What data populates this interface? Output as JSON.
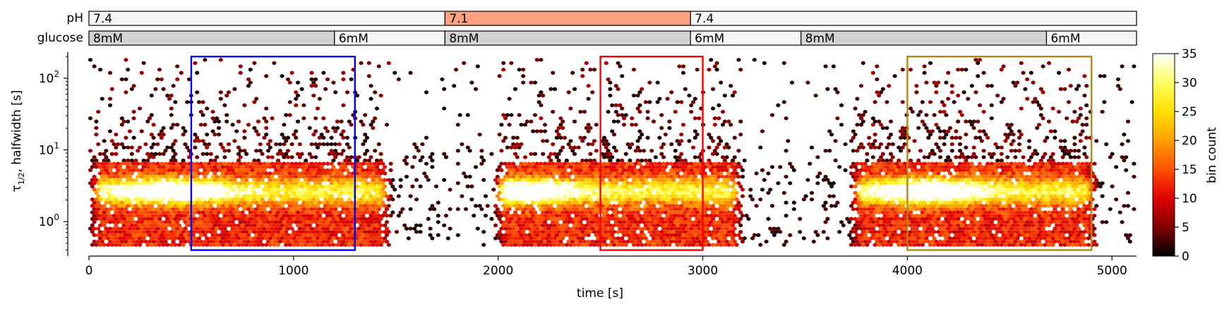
{
  "chart_data": {
    "type": "heatmap",
    "subtype": "hexbin",
    "xlabel": "time [s]",
    "ylabel": "τ1/2, halfwidth [s]",
    "ylabel_main": "τ",
    "ylabel_sub": "1/2",
    "ylabel_rest": ", halfwidth [s]",
    "xlim": [
      0,
      5120
    ],
    "ylim": [
      0.33,
      220
    ],
    "yscale": "log",
    "x_ticks": [
      0,
      1000,
      2000,
      3000,
      4000,
      5000
    ],
    "x_tick_labels": [
      "0",
      "1000",
      "2000",
      "3000",
      "4000",
      "5000"
    ],
    "y_ticks": [
      {
        "value": 1,
        "base": "10",
        "exp": "0"
      },
      {
        "value": 10,
        "base": "10",
        "exp": "1"
      },
      {
        "value": 100,
        "base": "10",
        "exp": "2"
      }
    ],
    "grid": false,
    "colorbar": {
      "label": "bin count",
      "range": [
        0,
        35
      ],
      "ticks": [
        0,
        5,
        10,
        15,
        20,
        25,
        30,
        35
      ],
      "tick_labels": [
        "0",
        "5",
        "10",
        "15",
        "20",
        "25",
        "30",
        "35"
      ],
      "colormap": "hot",
      "colors": [
        "#000000",
        "#800000",
        "#e00000",
        "#ff5000",
        "#ffa000",
        "#ffe000",
        "#ffff60",
        "#ffffff"
      ]
    },
    "condition_bars": [
      {
        "label": "pH",
        "segments": [
          {
            "start": 0,
            "end": 1740,
            "text": "7.4",
            "color": "#f5f5f5"
          },
          {
            "start": 1740,
            "end": 2940,
            "text": "7.1",
            "color": "#fca082"
          },
          {
            "start": 2940,
            "end": 5120,
            "text": "7.4",
            "color": "#f5f5f5"
          }
        ]
      },
      {
        "label": "glucose",
        "segments": [
          {
            "start": 0,
            "end": 1200,
            "text": "8mM",
            "color": "#d3d3d3"
          },
          {
            "start": 1200,
            "end": 1740,
            "text": "6mM",
            "color": "#f5f5f5"
          },
          {
            "start": 1740,
            "end": 2940,
            "text": "8mM",
            "color": "#d3d3d3"
          },
          {
            "start": 2940,
            "end": 3480,
            "text": "6mM",
            "color": "#f5f5f5"
          },
          {
            "start": 3480,
            "end": 4680,
            "text": "8mM",
            "color": "#d3d3d3"
          },
          {
            "start": 4680,
            "end": 5120,
            "text": "6mM",
            "color": "#f5f5f5"
          }
        ]
      }
    ],
    "highlight_boxes": [
      {
        "x0": 500,
        "x1": 1300,
        "y0": 0.4,
        "y1": 200,
        "color": "#0000ff"
      },
      {
        "x0": 2500,
        "x1": 3000,
        "y0": 0.4,
        "y1": 200,
        "color": "#ff0000"
      },
      {
        "x0": 4000,
        "x1": 4900,
        "y0": 0.4,
        "y1": 200,
        "color": "#b8860b"
      }
    ],
    "activity_periods": [
      {
        "x0": 0,
        "x1": 1480,
        "peak_x": 400,
        "peak_y": 2.6,
        "peak_count": 33
      },
      {
        "x0": 1980,
        "x1": 3200,
        "peak_x": 2100,
        "peak_y": 2.8,
        "peak_count": 30
      },
      {
        "x0": 3720,
        "x1": 4930,
        "peak_x": 4100,
        "peak_y": 2.6,
        "peak_count": 30
      }
    ],
    "sparse_periods": [
      {
        "x0": 1480,
        "x1": 1980
      },
      {
        "x0": 3200,
        "x1": 3720
      },
      {
        "x0": 4930,
        "x1": 5120
      }
    ]
  }
}
